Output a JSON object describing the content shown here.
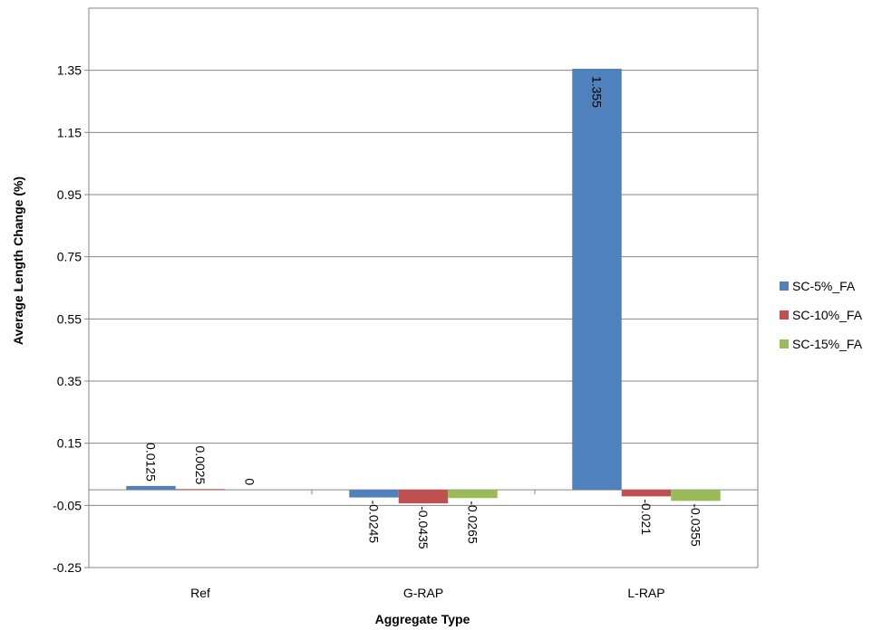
{
  "chart_data": {
    "type": "bar",
    "title": "",
    "xlabel": "Aggregate Type",
    "ylabel": "Average Length Change (%)",
    "categories": [
      "Ref",
      "G-RAP",
      "L-RAP"
    ],
    "series": [
      {
        "name": "SC-5%_FA",
        "color": "#4F81BD",
        "values": [
          0.0125,
          -0.0245,
          1.355
        ],
        "labels": [
          "0.0125",
          "-0.0245",
          "1.355"
        ]
      },
      {
        "name": "SC-10%_FA",
        "color": "#C0504D",
        "values": [
          0.0025,
          -0.0435,
          -0.021
        ],
        "labels": [
          "0.0025",
          "-0.0435",
          "-0.021"
        ]
      },
      {
        "name": "SC-15%_FA",
        "color": "#9BBB59",
        "values": [
          0,
          -0.0265,
          -0.0355
        ],
        "labels": [
          "0",
          "-0.0265",
          "-0.0355"
        ]
      }
    ],
    "ylim": [
      -0.25,
      1.55
    ],
    "yticks": [
      -0.25,
      -0.05,
      0.15,
      0.35,
      0.55,
      0.75,
      0.95,
      1.15,
      1.35
    ],
    "ytick_labels": [
      "-0.25",
      "-0.05",
      "0.15",
      "0.35",
      "0.55",
      "0.75",
      "0.95",
      "1.15",
      "1.35"
    ],
    "grid": true,
    "legend_position": "right"
  }
}
